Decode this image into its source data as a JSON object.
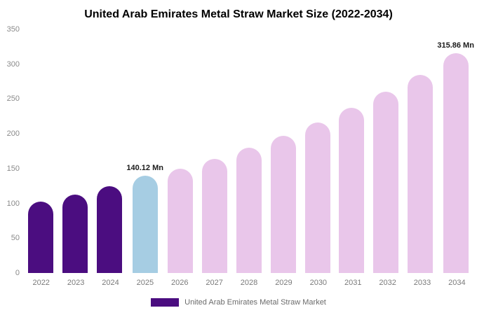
{
  "legend": {
    "label": "United Arab Emirates Metal Straw Market",
    "swatch_color": "#4b0d80"
  },
  "chart_data": {
    "type": "bar",
    "title": "United Arab Emirates Metal Straw Market Size (2022-2034)",
    "categories": [
      "2022",
      "2023",
      "2024",
      "2025",
      "2026",
      "2027",
      "2028",
      "2029",
      "2030",
      "2031",
      "2032",
      "2033",
      "2034"
    ],
    "values": [
      103,
      113,
      125,
      140.12,
      150,
      164,
      180,
      197,
      216,
      237,
      260,
      285,
      315.86
    ],
    "bar_colors": [
      "#4b0d80",
      "#4b0d80",
      "#4b0d80",
      "#a6cde3",
      "#e9c6ea",
      "#e9c6ea",
      "#e9c6ea",
      "#e9c6ea",
      "#e9c6ea",
      "#e9c6ea",
      "#e9c6ea",
      "#e9c6ea",
      "#e9c6ea"
    ],
    "ylim": [
      0,
      350
    ],
    "yticks": [
      0,
      50,
      100,
      150,
      200,
      250,
      300,
      350
    ],
    "grid": false,
    "legend_position": "bottom",
    "xlabel": "",
    "ylabel": "",
    "annotations": [
      {
        "category": "2025",
        "text": "140.12 Mn"
      },
      {
        "category": "2034",
        "text": "315.86 Mn"
      }
    ]
  }
}
